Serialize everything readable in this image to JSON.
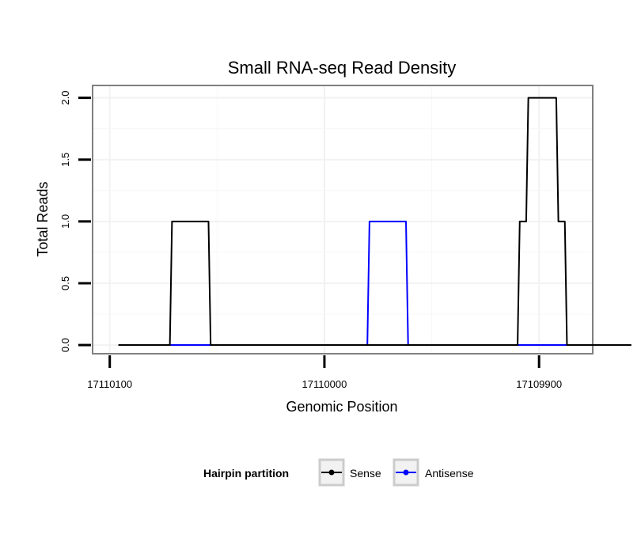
{
  "chart_data": {
    "type": "line",
    "title": "Small RNA-seq Read Density",
    "xlabel": "Genomic Position",
    "ylabel": "Total Reads",
    "x_reversed": true,
    "xlim": [
      17110108,
      17109875
    ],
    "ylim": [
      -0.07,
      2.1
    ],
    "x_ticks": [
      {
        "value": 17110100,
        "label": "17110100"
      },
      {
        "value": 17110000,
        "label": "17110000"
      },
      {
        "value": 17109900,
        "label": "17109900"
      }
    ],
    "y_ticks": [
      {
        "value": 0,
        "label": "0.0"
      },
      {
        "value": 0.5,
        "label": "0.5"
      },
      {
        "value": 1,
        "label": "1.0"
      },
      {
        "value": 1.5,
        "label": "1.5"
      },
      {
        "value": 2,
        "label": "2.0"
      }
    ],
    "grid": true,
    "legend": {
      "title": "Hairpin partition",
      "position": "bottom",
      "entries": [
        {
          "name": "Sense",
          "color": "#000000"
        },
        {
          "name": "Antisense",
          "color": "#0000ff"
        }
      ]
    },
    "series": [
      {
        "name": "Sense",
        "color": "#000000",
        "points": [
          [
            17110096,
            0
          ],
          [
            17110072,
            0
          ],
          [
            17110071,
            1
          ],
          [
            17110054,
            1
          ],
          [
            17110053,
            0
          ],
          [
            17109910,
            0
          ],
          [
            17109909,
            1
          ],
          [
            17109906,
            1
          ],
          [
            17109905,
            2
          ],
          [
            17109892,
            2
          ],
          [
            17109891,
            1
          ],
          [
            17109888,
            1
          ],
          [
            17109887,
            0
          ],
          [
            17109857,
            0
          ]
        ]
      },
      {
        "name": "Antisense",
        "color": "#0000ff",
        "points": [
          [
            17110072,
            0
          ],
          [
            17109980,
            0
          ],
          [
            17109979,
            1
          ],
          [
            17109962,
            1
          ],
          [
            17109961,
            0
          ],
          [
            17109887,
            0
          ]
        ]
      }
    ]
  },
  "colors": {
    "panel_border": "#808080",
    "grid_major": "#f2f2f2",
    "grid_minor": "#f7f7f7"
  }
}
